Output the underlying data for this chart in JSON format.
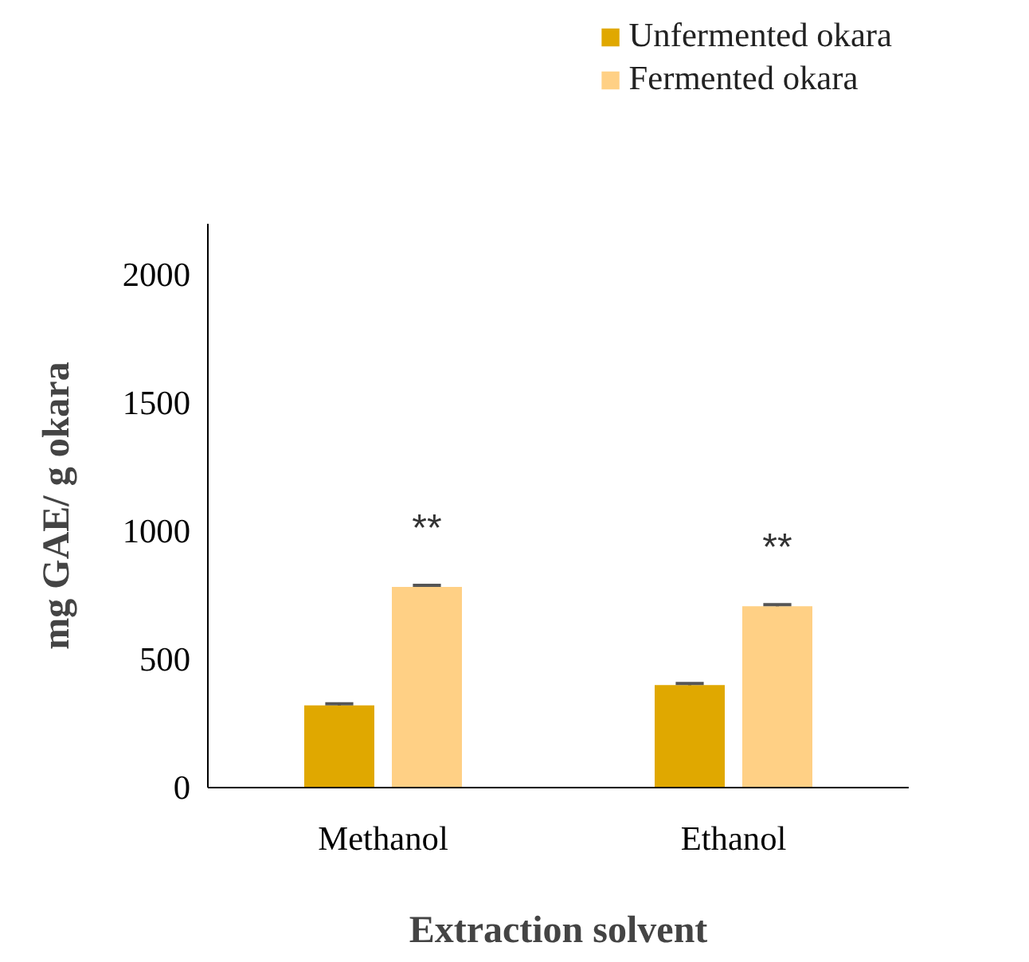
{
  "chart_data": {
    "type": "bar",
    "xlabel": "Extraction solvent",
    "ylabel": "mg GAE/ g okara",
    "categories": [
      "Methanol",
      "Ethanol"
    ],
    "series": [
      {
        "name": "Unfermented okara",
        "color": "#e0a800",
        "values": [
          321,
          400
        ],
        "errors": [
          6,
          6
        ]
      },
      {
        "name": "Fermented okara",
        "color": "#ffd085",
        "values": [
          783,
          708
        ],
        "errors": [
          6,
          6
        ]
      }
    ],
    "ylim": [
      0,
      2200
    ],
    "yticks": [
      0,
      500,
      1000,
      1500,
      2000
    ],
    "grid": false,
    "legend": "top right",
    "annotations": [
      "**",
      "**"
    ]
  }
}
